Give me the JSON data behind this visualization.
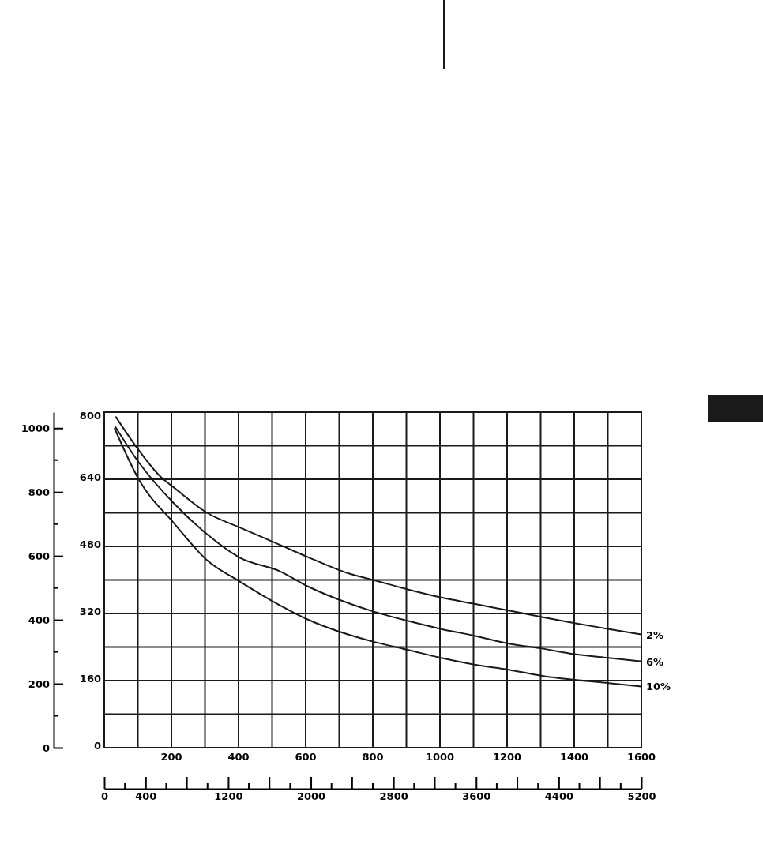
{
  "chart_data": {
    "type": "line",
    "xlim": [
      0,
      1600
    ],
    "ylim": [
      0,
      800
    ],
    "xticks": [
      {
        "value": 0,
        "label": null
      },
      {
        "value": 100,
        "label": null
      },
      200,
      {
        "value": 300,
        "label": null
      },
      400,
      {
        "value": 500,
        "label": null
      },
      600,
      {
        "value": 700,
        "label": null
      },
      800,
      {
        "value": 900,
        "label": null
      },
      1000,
      {
        "value": 1100,
        "label": null
      },
      1200,
      {
        "value": 1300,
        "label": null
      },
      1400,
      {
        "value": 1500,
        "label": null
      },
      1600
    ],
    "yticks": [
      0,
      {
        "value": 80,
        "label": null
      },
      160,
      {
        "value": 240,
        "label": null
      },
      320,
      {
        "value": 400,
        "label": null
      },
      480,
      {
        "value": 560,
        "label": null
      },
      640,
      {
        "value": 720,
        "label": null
      },
      800
    ],
    "y2lim": [
      0,
      1050
    ],
    "y2ticks": [
      0,
      200,
      400,
      600,
      800,
      1000
    ],
    "x2lim": [
      0,
      5200
    ],
    "x2ticks": [
      0,
      400,
      1200,
      2000,
      2800,
      3600,
      4400,
      5200
    ],
    "grid": true,
    "legend": false,
    "marker": "none",
    "line_style": "solid",
    "series": [
      {
        "name": "2%",
        "color": "#1a1a1a",
        "x": [
          35,
          104,
          169,
          208,
          306,
          404,
          522,
          608,
          726,
          805,
          906,
          1004,
          1103,
          1205,
          1307,
          1401,
          1503,
          1600
        ],
        "values": [
          788,
          708,
          645,
          620,
          560,
          525,
          484,
          454,
          416,
          399,
          377,
          358,
          343,
          327,
          311,
          297,
          283,
          270
        ]
      },
      {
        "name": "6%",
        "color": "#1a1a1a",
        "x": [
          34,
          104,
          208,
          306,
          404,
          522,
          608,
          726,
          805,
          906,
          1004,
          1103,
          1205,
          1307,
          1401,
          1503,
          1600
        ],
        "values": [
          764,
          679,
          582,
          509,
          453,
          421,
          384,
          345,
          324,
          302,
          283,
          267,
          248,
          236,
          223,
          214,
          206
        ]
      },
      {
        "name": "10%",
        "color": "#1a1a1a",
        "x": [
          31,
          104,
          208,
          306,
          404,
          522,
          608,
          726,
          805,
          906,
          1004,
          1103,
          1205,
          1307,
          1401,
          1503,
          1600
        ],
        "values": [
          761,
          638,
          535,
          447,
          396,
          340,
          305,
          270,
          252,
          233,
          214,
          198,
          186,
          171,
          162,
          154,
          146
        ]
      }
    ]
  }
}
